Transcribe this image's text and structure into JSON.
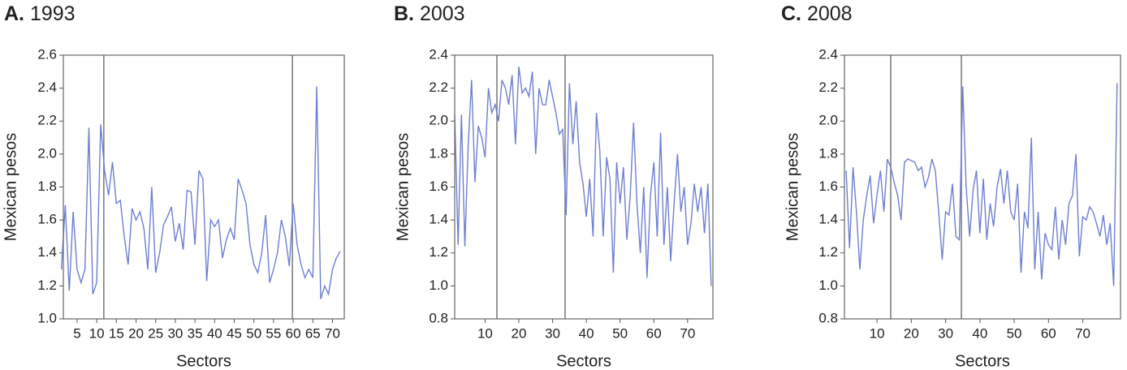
{
  "chart_data": [
    {
      "type": "line",
      "label": "A.",
      "title": "1993",
      "ylabel": "Mexican pesos",
      "xlabel": "Sectors",
      "color": "#6f7fd0",
      "vline_color": "#777777",
      "x": [
        1,
        2,
        3,
        4,
        5,
        6,
        7,
        8,
        9,
        10,
        11,
        12,
        13,
        14,
        15,
        16,
        17,
        18,
        19,
        20,
        21,
        22,
        23,
        24,
        25,
        26,
        27,
        28,
        29,
        30,
        31,
        32,
        33,
        34,
        35,
        36,
        37,
        38,
        39,
        40,
        41,
        42,
        43,
        44,
        45,
        46,
        47,
        48,
        49,
        50,
        51,
        52,
        53,
        54,
        55,
        56,
        57,
        58,
        59,
        60,
        61,
        62,
        63,
        64,
        65,
        66,
        67,
        68,
        69,
        70,
        71,
        72
      ],
      "series": [
        {
          "values": [
            1.3,
            1.69,
            1.17,
            1.65,
            1.3,
            1.22,
            1.3,
            2.16,
            1.15,
            1.22,
            2.18,
            1.9,
            1.75,
            1.95,
            1.7,
            1.72,
            1.5,
            1.33,
            1.67,
            1.6,
            1.65,
            1.55,
            1.3,
            1.8,
            1.28,
            1.4,
            1.57,
            1.62,
            1.68,
            1.47,
            1.58,
            1.42,
            1.78,
            1.77,
            1.45,
            1.9,
            1.85,
            1.23,
            1.6,
            1.56,
            1.6,
            1.37,
            1.48,
            1.55,
            1.48,
            1.85,
            1.78,
            1.7,
            1.45,
            1.33,
            1.28,
            1.4,
            1.63,
            1.22,
            1.3,
            1.4,
            1.6,
            1.5,
            1.32,
            1.7,
            1.45,
            1.33,
            1.25,
            1.3,
            1.25,
            2.41,
            1.12,
            1.2,
            1.15,
            1.3,
            1.37,
            1.41
          ]
        }
      ],
      "vlines": [
        11.8,
        59.8
      ],
      "xlim": [
        1.5,
        73
      ],
      "xticks": [
        5,
        10,
        15,
        20,
        25,
        30,
        35,
        40,
        45,
        50,
        55,
        60,
        65,
        70
      ],
      "ylim": [
        1,
        2.6
      ],
      "yticks": [
        {
          "value": 1,
          "label": "1.0"
        },
        1.2,
        1.4,
        1.6,
        1.8,
        {
          "value": 2,
          "label": "2.0"
        },
        2.2,
        2.4,
        2.6
      ]
    },
    {
      "type": "line",
      "label": "B.",
      "title": "2003",
      "ylabel": "Mexican pesos",
      "xlabel": "Sectors",
      "color": "#6f7fd0",
      "vline_color": "#777777",
      "x": [
        1,
        2,
        3,
        4,
        5,
        6,
        7,
        8,
        9,
        10,
        11,
        12,
        13,
        14,
        15,
        16,
        17,
        18,
        19,
        20,
        21,
        22,
        23,
        24,
        25,
        26,
        27,
        28,
        29,
        30,
        31,
        32,
        33,
        34,
        35,
        36,
        37,
        38,
        39,
        40,
        41,
        42,
        43,
        44,
        45,
        46,
        47,
        48,
        49,
        50,
        51,
        52,
        53,
        54,
        55,
        56,
        57,
        58,
        59,
        60,
        61,
        62,
        63,
        64,
        65,
        66,
        67,
        68,
        69,
        70,
        71,
        72,
        73,
        74,
        75,
        76,
        77
      ],
      "series": [
        {
          "values": [
            2.04,
            1.25,
            2.04,
            1.24,
            1.85,
            2.25,
            1.63,
            1.97,
            1.9,
            1.78,
            2.2,
            2.05,
            2.1,
            2.0,
            2.25,
            2.2,
            2.1,
            2.28,
            1.86,
            2.33,
            2.17,
            2.2,
            2.15,
            2.3,
            1.8,
            2.2,
            2.1,
            2.1,
            2.25,
            2.15,
            2.05,
            1.92,
            1.95,
            1.43,
            2.23,
            1.86,
            2.12,
            1.75,
            1.62,
            1.42,
            1.65,
            1.3,
            2.05,
            1.82,
            1.3,
            1.78,
            1.65,
            1.08,
            1.75,
            1.5,
            1.72,
            1.28,
            1.55,
            1.99,
            1.5,
            1.2,
            1.6,
            1.05,
            1.55,
            1.75,
            1.3,
            1.93,
            1.25,
            1.6,
            1.15,
            1.5,
            1.8,
            1.45,
            1.6,
            1.25,
            1.38,
            1.62,
            1.45,
            1.6,
            1.32,
            1.62,
            1.0
          ]
        }
      ],
      "vlines": [
        13.5,
        33.7
      ],
      "xlim": [
        1,
        77.5
      ],
      "xticks": [
        10,
        20,
        30,
        40,
        50,
        60,
        70
      ],
      "ylim": [
        0.8,
        2.4
      ],
      "yticks": [
        0.8,
        {
          "value": 1,
          "label": "1.0"
        },
        1.2,
        1.4,
        1.6,
        1.8,
        {
          "value": 2,
          "label": "2.0"
        },
        2.2,
        2.4
      ]
    },
    {
      "type": "line",
      "label": "C.",
      "title": "2008",
      "ylabel": "Mexican pesos",
      "xlabel": "Sectors",
      "color": "#6f7fd0",
      "vline_color": "#777777",
      "x": [
        1,
        2,
        3,
        4,
        5,
        6,
        7,
        8,
        9,
        10,
        11,
        12,
        13,
        14,
        15,
        16,
        17,
        18,
        19,
        20,
        21,
        22,
        23,
        24,
        25,
        26,
        27,
        28,
        29,
        30,
        31,
        32,
        33,
        34,
        35,
        36,
        37,
        38,
        39,
        40,
        41,
        42,
        43,
        44,
        45,
        46,
        47,
        48,
        49,
        50,
        51,
        52,
        53,
        54,
        55,
        56,
        57,
        58,
        59,
        60,
        61,
        62,
        63,
        64,
        65,
        66,
        67,
        68,
        69,
        70,
        71,
        72,
        73,
        74,
        75,
        76,
        77,
        78,
        79,
        80
      ],
      "series": [
        {
          "values": [
            1.7,
            1.23,
            1.72,
            1.45,
            1.1,
            1.4,
            1.55,
            1.67,
            1.38,
            1.55,
            1.7,
            1.45,
            1.77,
            1.72,
            1.63,
            1.55,
            1.4,
            1.75,
            1.77,
            1.76,
            1.75,
            1.7,
            1.72,
            1.6,
            1.66,
            1.77,
            1.7,
            1.45,
            1.16,
            1.45,
            1.43,
            1.62,
            1.3,
            1.28,
            2.21,
            1.6,
            1.3,
            1.58,
            1.7,
            1.32,
            1.65,
            1.28,
            1.5,
            1.36,
            1.6,
            1.71,
            1.5,
            1.7,
            1.45,
            1.4,
            1.62,
            1.08,
            1.45,
            1.35,
            1.9,
            1.1,
            1.45,
            1.04,
            1.32,
            1.25,
            1.22,
            1.48,
            1.16,
            1.4,
            1.25,
            1.5,
            1.55,
            1.8,
            1.18,
            1.42,
            1.4,
            1.48,
            1.45,
            1.38,
            1.3,
            1.43,
            1.25,
            1.38,
            1.0,
            2.23
          ]
        }
      ],
      "vlines": [
        14,
        34.6
      ],
      "xlim": [
        0.5,
        81
      ],
      "xticks": [
        10,
        20,
        30,
        40,
        50,
        60,
        70
      ],
      "ylim": [
        0.8,
        2.4
      ],
      "yticks": [
        0.8,
        {
          "value": 1,
          "label": "1.0"
        },
        1.2,
        1.4,
        1.6,
        1.8,
        {
          "value": 2,
          "label": "2.0"
        },
        2.2,
        2.4
      ]
    }
  ]
}
